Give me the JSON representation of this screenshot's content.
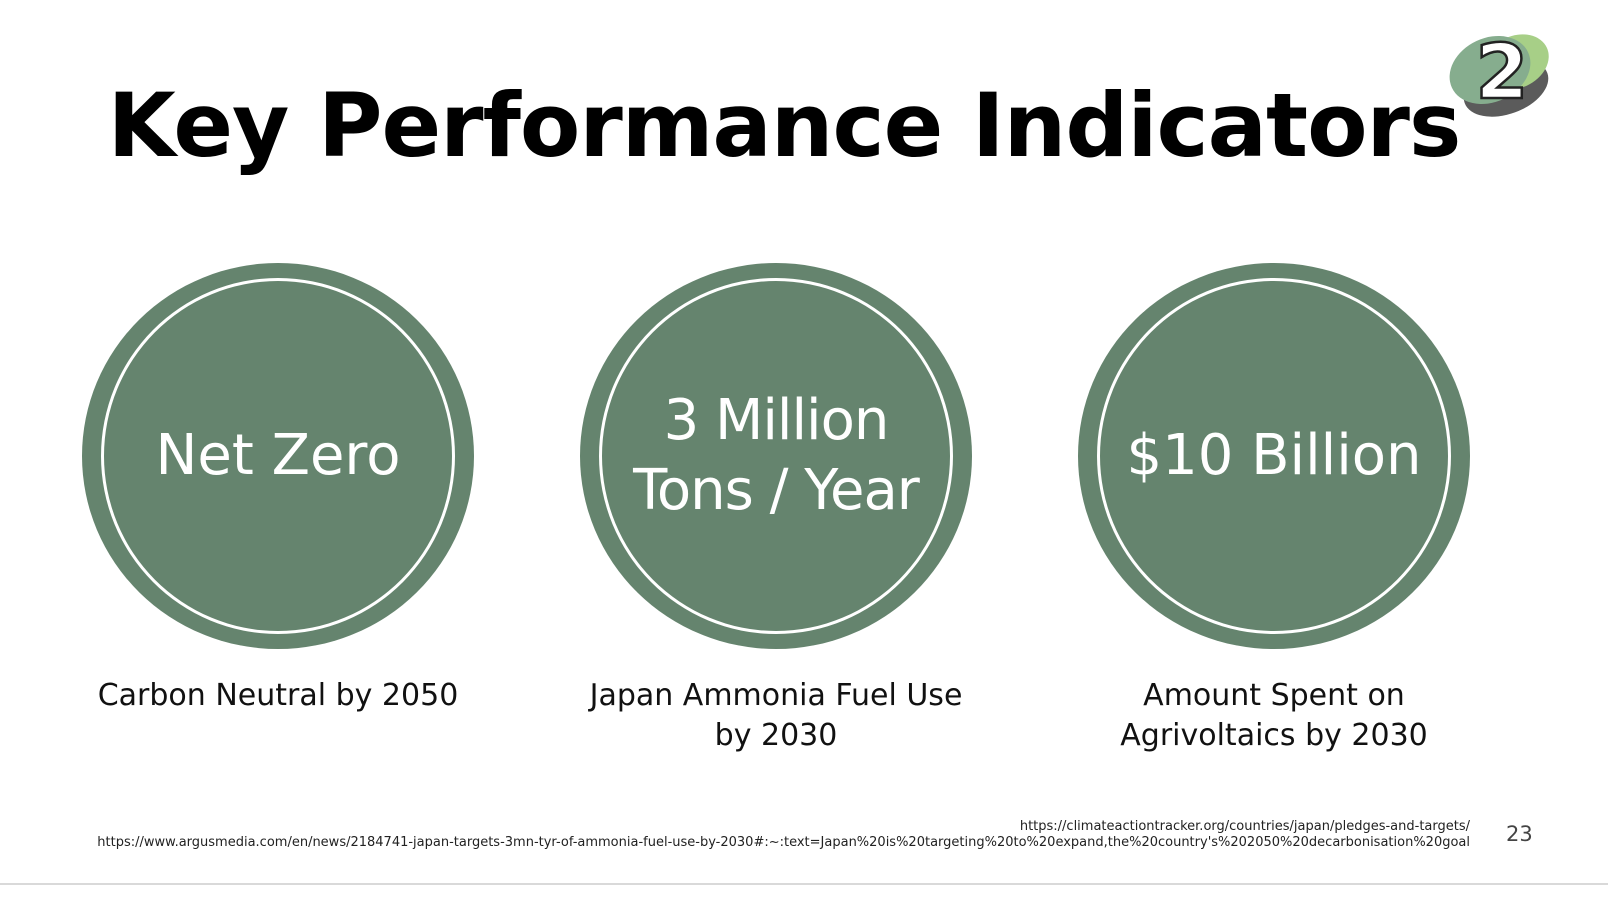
{
  "slide": {
    "title": "Key Performance Indicators",
    "page_number": "23",
    "logo_number": "2",
    "accent_color": "#65846e"
  },
  "kpis": [
    {
      "value_lines": [
        "Net Zero"
      ],
      "caption_lines": [
        "Carbon Neutral by 2050"
      ]
    },
    {
      "value_lines": [
        "3 Million",
        "Tons / Year"
      ],
      "caption_lines": [
        "Japan Ammonia Fuel Use",
        "by 2030"
      ]
    },
    {
      "value_lines": [
        "$10 Billion"
      ],
      "caption_lines": [
        "Amount Spent on",
        "Agrivoltaics by 2030"
      ]
    }
  ],
  "sources": [
    "https://climateactiontracker.org/countries/japan/pledges-and-targets/",
    "https://www.argusmedia.com/en/news/2184741-japan-targets-3mn-tyr-of-ammonia-fuel-use-by-2030#:~:text=Japan%20is%20targeting%20to%20expand,the%20country's%202050%20decarbonisation%20goal"
  ]
}
